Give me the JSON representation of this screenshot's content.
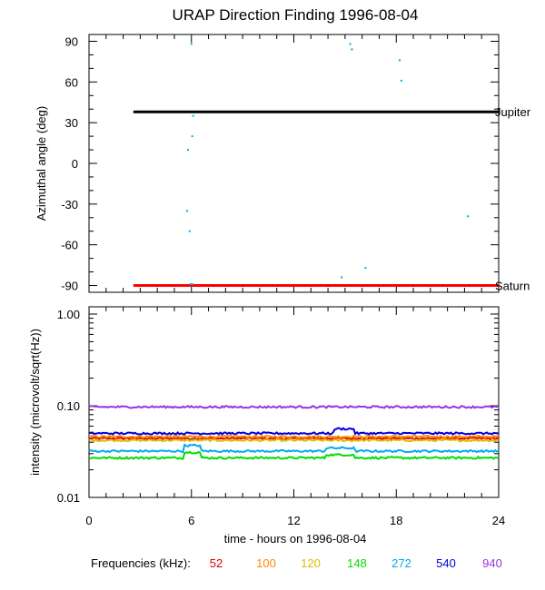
{
  "chart_data": [
    {
      "type": "scatter",
      "title": "URAP Direction Finding  1996-08-04",
      "ylabel": "Azimuthal angle (deg)",
      "xlim": [
        0,
        24
      ],
      "ylim": [
        -95,
        95
      ],
      "yticks": [
        90,
        60,
        30,
        0,
        -30,
        -60,
        -90
      ],
      "ytick_labels": [
        "90",
        "60",
        "30",
        "0",
        "-30",
        "-60",
        "-90"
      ],
      "reference_lines": [
        {
          "label": "Jupiter",
          "y": 38,
          "x_start": 2.6,
          "x_end": 24,
          "color": "#000000"
        },
        {
          "label": "Saturn",
          "y": -90,
          "x_start": 2.6,
          "x_end": 24,
          "color": "#ff0000"
        }
      ],
      "series": [
        {
          "frequency_khz": 272,
          "color": "#00aaee",
          "x": [
            6.0,
            6.1,
            6.05,
            5.8,
            5.75,
            5.9,
            5.95,
            6.05,
            15.3,
            15.4,
            18.2,
            18.3,
            22.2,
            16.2,
            14.8
          ],
          "y": [
            88,
            35,
            20,
            10,
            -35,
            -50,
            -89,
            -89,
            88,
            84,
            76,
            61,
            -39,
            -77,
            -84
          ]
        }
      ]
    },
    {
      "type": "line",
      "ylabel": "intensity (microvolt/sqrt(Hz))",
      "xlabel": "time - hours on 1996-08-04",
      "xlim": [
        0,
        24
      ],
      "xticks": [
        0,
        6,
        12,
        18,
        24
      ],
      "xtick_labels": [
        "0",
        "6",
        "12",
        "18",
        "24"
      ],
      "yscale": "log",
      "ylim": [
        0.01,
        1.2
      ],
      "yticks": [
        1.0,
        0.1,
        0.01
      ],
      "ytick_labels": [
        "1.00",
        "0.10",
        "0.01"
      ],
      "series": [
        {
          "name": "52",
          "color": "#dd0000",
          "level": 0.044
        },
        {
          "name": "100",
          "color": "#ff8800",
          "level": 0.046
        },
        {
          "name": "120",
          "color": "#ddbb00",
          "level": 0.042
        },
        {
          "name": "148",
          "color": "#00dd00",
          "level": 0.027
        },
        {
          "name": "272",
          "color": "#00aaee",
          "level": 0.032
        },
        {
          "name": "540",
          "color": "#0000dd",
          "level": 0.05
        },
        {
          "name": "940",
          "color": "#9933dd",
          "level": 0.097
        }
      ],
      "legend_title": "Frequencies (kHz):",
      "legend_position": "bottom"
    }
  ]
}
